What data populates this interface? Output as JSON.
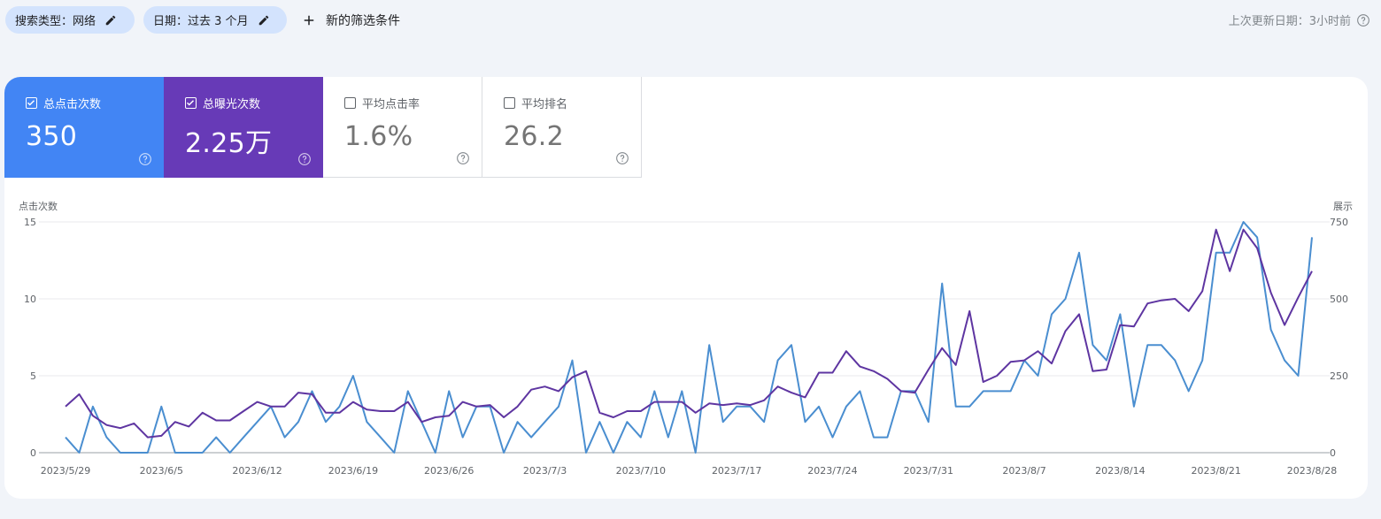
{
  "filters": {
    "search_type": "搜索类型：网络",
    "date": "日期：过去 3 个月",
    "add_filter": "新的筛选条件"
  },
  "last_updated": "上次更新日期：3小时前",
  "metrics": {
    "clicks": {
      "label": "总点击次数",
      "value": "350",
      "checked": true,
      "color": "#4285f4"
    },
    "impressions": {
      "label": "总曝光次数",
      "value": "2.25万",
      "checked": true,
      "color": "#673ab7"
    },
    "ctr": {
      "label": "平均点击率",
      "value": "1.6%",
      "checked": false
    },
    "position": {
      "label": "平均排名",
      "value": "26.2",
      "checked": false
    }
  },
  "chart_data": {
    "type": "line",
    "left_axis": {
      "label": "点击次数",
      "ticks": [
        0,
        5,
        10,
        15
      ],
      "range": [
        0,
        15
      ]
    },
    "right_axis": {
      "label": "展示",
      "ticks": [
        0,
        250,
        500,
        750
      ],
      "range": [
        0,
        750
      ]
    },
    "x_ticks": [
      "2023/5/29",
      "2023/6/5",
      "2023/6/12",
      "2023/6/19",
      "2023/6/26",
      "2023/7/3",
      "2023/7/10",
      "2023/7/17",
      "2023/7/24",
      "2023/7/31",
      "2023/8/7",
      "2023/8/14",
      "2023/8/21",
      "2023/8/28"
    ],
    "start_date": "2023/5/29",
    "end_date": "2023/8/28",
    "series": [
      {
        "axis": "left",
        "color": "#4a8ed0",
        "values": [
          1,
          0,
          3,
          1,
          0,
          0,
          0,
          3,
          0,
          0,
          0,
          1,
          0,
          1,
          2,
          3,
          1,
          2,
          4,
          2,
          3,
          5,
          2,
          1,
          0,
          4,
          2,
          0,
          4,
          1,
          3,
          3,
          0,
          2,
          1,
          2,
          3,
          6,
          0,
          2,
          0,
          2,
          1,
          4,
          1,
          4,
          0,
          7,
          2,
          3,
          3,
          2,
          6,
          7,
          2,
          3,
          1,
          3,
          4,
          1,
          1,
          4,
          4,
          2,
          11,
          3,
          3,
          4,
          4,
          4,
          6,
          5,
          9,
          10,
          13,
          7,
          6,
          9,
          3,
          7,
          7,
          6,
          4,
          6,
          13,
          13,
          15,
          14,
          8,
          6,
          5,
          14
        ]
      },
      {
        "axis": "right",
        "color": "#5e35a1",
        "values": [
          150,
          190,
          120,
          90,
          80,
          95,
          50,
          55,
          100,
          85,
          130,
          105,
          105,
          135,
          165,
          150,
          150,
          195,
          190,
          130,
          130,
          165,
          140,
          135,
          135,
          165,
          100,
          115,
          120,
          165,
          150,
          155,
          115,
          150,
          205,
          215,
          200,
          245,
          265,
          130,
          115,
          135,
          135,
          165,
          165,
          165,
          130,
          160,
          155,
          160,
          155,
          170,
          215,
          195,
          180,
          260,
          260,
          330,
          280,
          265,
          240,
          200,
          195,
          270,
          340,
          285,
          460,
          230,
          250,
          295,
          300,
          330,
          290,
          395,
          450,
          265,
          270,
          415,
          410,
          485,
          495,
          500,
          460,
          525,
          725,
          590,
          725,
          665,
          520,
          415,
          505,
          590
        ]
      }
    ]
  }
}
